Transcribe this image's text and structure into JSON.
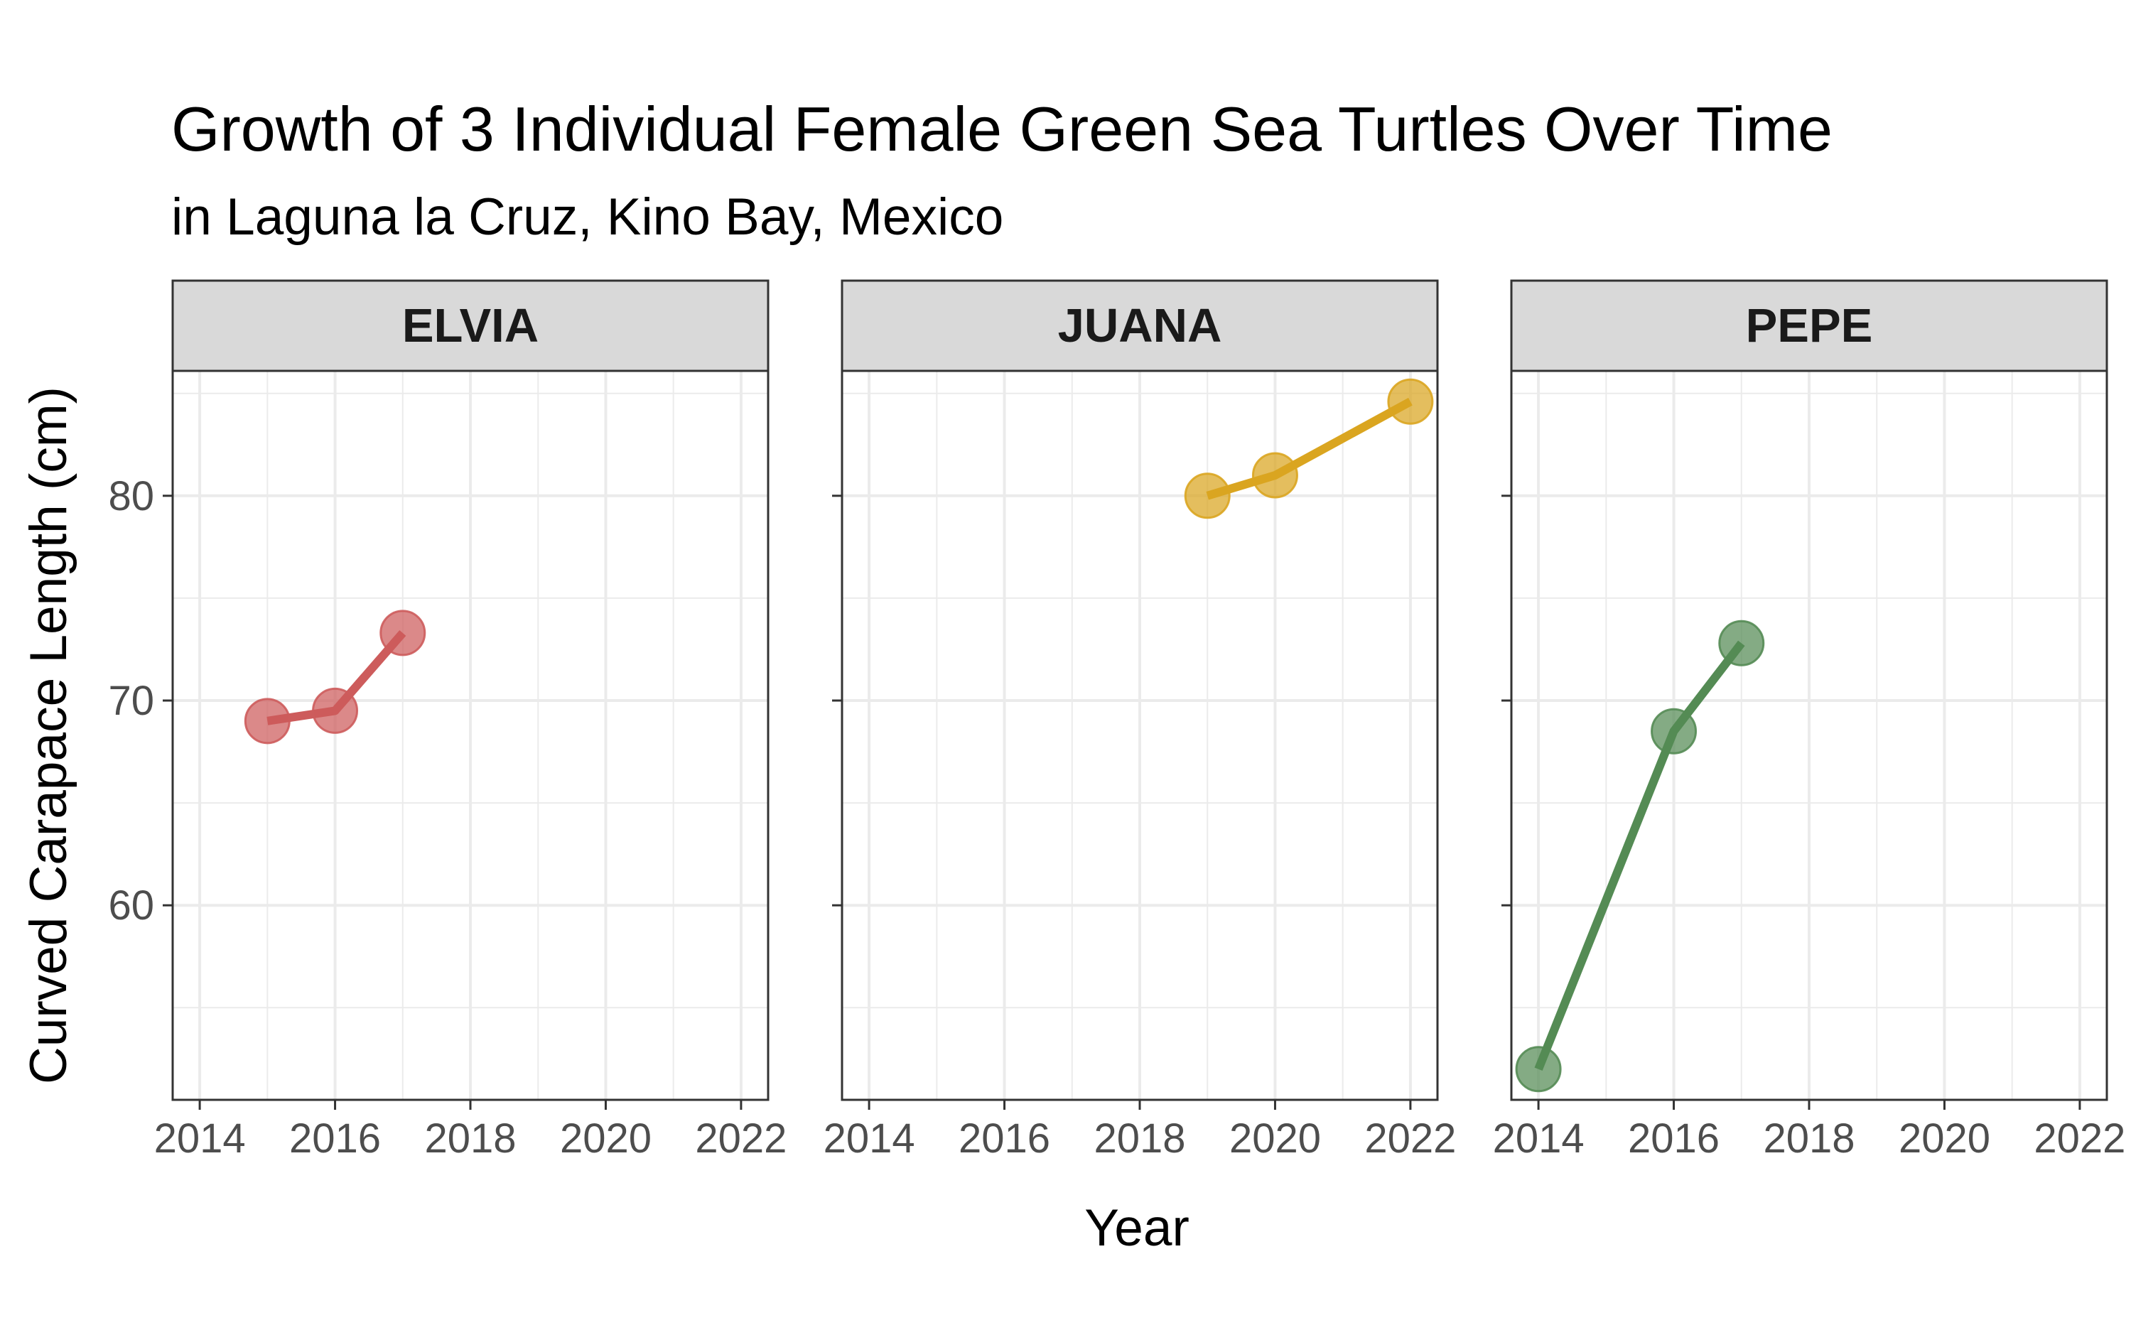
{
  "chart_data": {
    "type": "line",
    "title": "Growth of 3 Individual Female Green Sea Turtles Over Time",
    "subtitle": "in Laguna la Cruz, Kino Bay, Mexico",
    "xlabel": "Year",
    "ylabel": "Curved Carapace Length (cm)",
    "xlim": [
      2013.6,
      2022.4
    ],
    "ylim": [
      50.5,
      86.1
    ],
    "x_ticks": [
      "2014",
      "2016",
      "2018",
      "2020",
      "2022"
    ],
    "y_ticks": [
      "60",
      "70",
      "80"
    ],
    "grid": true,
    "legend": "none",
    "panels": [
      {
        "name": "ELVIA",
        "color": "#CD5C5C",
        "points": [
          {
            "x": 2015,
            "y": 69.0
          },
          {
            "x": 2016,
            "y": 69.5
          },
          {
            "x": 2017,
            "y": 73.3
          }
        ]
      },
      {
        "name": "JUANA",
        "color": "#DAA520",
        "points": [
          {
            "x": 2019,
            "y": 80.0
          },
          {
            "x": 2020,
            "y": 81.0
          },
          {
            "x": 2022,
            "y": 84.6
          }
        ]
      },
      {
        "name": "PEPE",
        "color": "#548B54",
        "points": [
          {
            "x": 2014,
            "y": 52.0
          },
          {
            "x": 2016,
            "y": 68.5
          },
          {
            "x": 2017,
            "y": 72.8
          }
        ]
      }
    ]
  }
}
